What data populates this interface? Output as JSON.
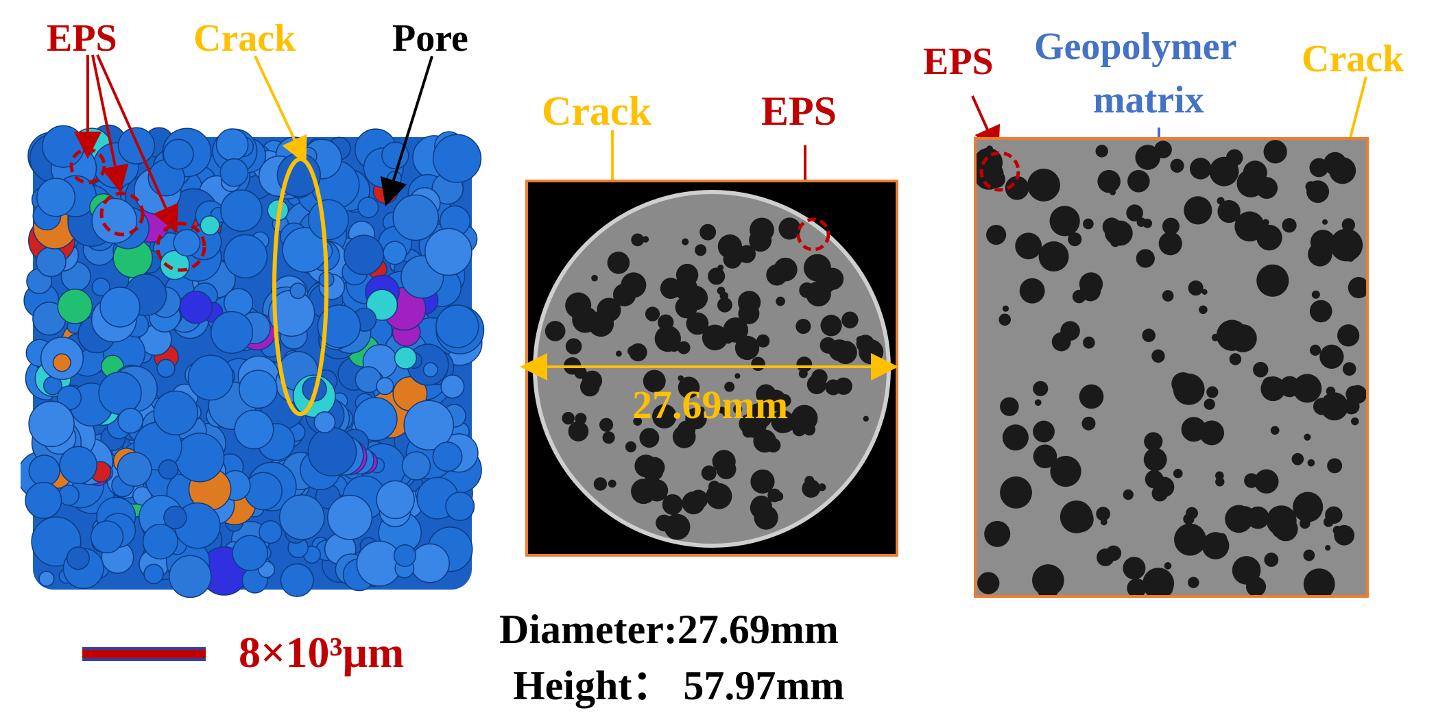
{
  "colors": {
    "eps": "#c00000",
    "crack": "#ffc000",
    "pore": "#000000",
    "matrix": "#4472c4",
    "frame": "#ed7d31",
    "eps_3d_blue": "#1f6fd6"
  },
  "left_panel": {
    "labels": {
      "eps": "EPS",
      "crack": "Crack",
      "pore": "Pore"
    },
    "scale_bar": {
      "value": "8×10³μm"
    }
  },
  "middle_panel": {
    "labels": {
      "crack": "Crack",
      "eps": "EPS",
      "diameter_marker": "27.69mm"
    },
    "caption": {
      "diameter": "Diameter:27.69mm",
      "height": "Height：  57.97mm"
    }
  },
  "right_panel": {
    "labels": {
      "eps": "EPS",
      "matrix_line1": "Geopolymer",
      "matrix_line2": "matrix",
      "crack": "Crack"
    }
  }
}
